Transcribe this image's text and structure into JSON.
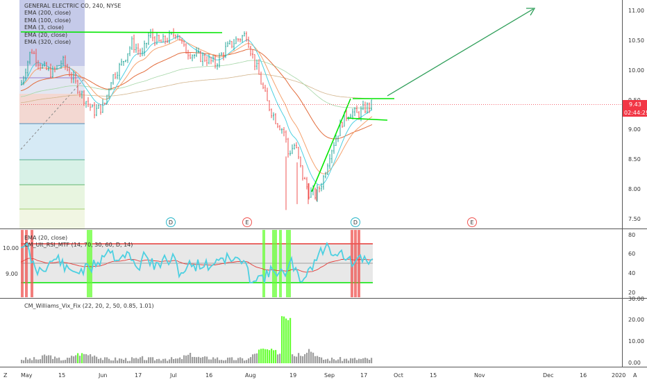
{
  "header": {
    "symbol_line": "GENERAL ELECTRIC CO, 240, NYSE",
    "ema_labels": [
      "EMA (200, close)",
      "EMA (100, close)",
      "EMA (3, close)",
      "EMA (20, close)",
      "EMA (320, close)"
    ]
  },
  "colors": {
    "up": "#26a69a",
    "down": "#ef5350",
    "ema_short": "#f5a26e",
    "ema_mid": "#e26b3a",
    "ema_cyan": "#4dd0e1",
    "ema_long": "#d2b48c",
    "trendline": "#00e600",
    "rsi_line": "#4dd0e1",
    "rsi_ma": "#e53935",
    "vix_gray": "#9e9e9e",
    "vix_green": "#66ff33",
    "fib_blue": "#c5cae9",
    "price_tag": "#f23645"
  },
  "price_axis": {
    "ticks": [
      "11.00",
      "10.50",
      "10.00",
      "9.50",
      "9.00",
      "8.50",
      "8.00",
      "7.50"
    ],
    "ylim": [
      7.35,
      11.15
    ]
  },
  "price_tag": {
    "value": "9.43",
    "countdown": "02:44:2!"
  },
  "events": [
    {
      "label": "D",
      "type": "dividend"
    },
    {
      "label": "E",
      "type": "earnings"
    },
    {
      "label": "D",
      "type": "dividend"
    },
    {
      "label": "E",
      "type": "earnings"
    }
  ],
  "rsi_panel": {
    "legend_ma": "EMA (20, close)",
    "legend_rsi": "CM_Ult_RSI_MTF (14, 70, 30, 60, D, 14)",
    "left_ticks": [
      "10.00",
      "9.00"
    ],
    "right_ticks": [
      "80",
      "60",
      "40",
      "20"
    ]
  },
  "vix_panel": {
    "legend": "CM_Williams_Vix_Fix (22, 20, 2, 50, 0.85, 1.01)",
    "right_ticks": [
      "30.00",
      "20.00",
      "10.00",
      "0.00"
    ]
  },
  "time_axis": {
    "labels": [
      "May",
      "15",
      "Jun",
      "17",
      "Jul",
      "16",
      "Aug",
      "19",
      "Sep",
      "17",
      "Oct",
      "15",
      "Nov",
      "Dec",
      "16",
      "2020"
    ]
  },
  "corner_icons": {
    "left": "Z",
    "right": "A"
  },
  "chart_data": {
    "type": "candlestick",
    "title": "GENERAL ELECTRIC CO, 240, NYSE",
    "ylim": [
      7.35,
      11.15
    ],
    "price_levels_approx": {
      "may_start": 9.8,
      "june_low": 9.15,
      "july_high": 10.75,
      "aug_high": 10.75,
      "aug_low": 7.7,
      "sep_last": 9.43
    },
    "overlays": [
      "EMA (200, close)",
      "EMA (100, close)",
      "EMA (3, close)",
      "EMA (20, close)",
      "EMA (320, close)"
    ],
    "drawings": [
      "horizontal resistance ~10.65",
      "rising wedge trendlines",
      "projection arrow to ~11.05"
    ]
  }
}
